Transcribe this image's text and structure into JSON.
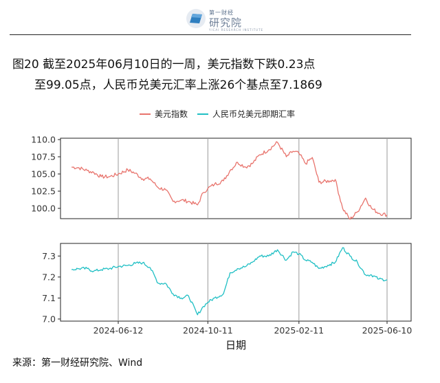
{
  "logo": {
    "brand_top": "第一财经",
    "brand_main": "研究院",
    "brand_sub": "YICAI RESEARCH INSTITUTE"
  },
  "title": {
    "line1": "图20  截至2025年06月10日的一周，美元指数下跌0.23点",
    "line2": "至99.05点，人民币兑美元汇率上涨26个基点至7.1869"
  },
  "source": "来源：第一财经研究院、Wind",
  "colors": {
    "usd": "#E8736C",
    "cny": "#1FBFC4",
    "axis": "#222222",
    "grid": "#9a9a9a"
  },
  "chart_data": {
    "type": "line",
    "legend_position": "top",
    "xlabel": "日期",
    "x_ticks": [
      "2024-06-12",
      "2024-10-11",
      "2025-02-11",
      "2025-06-10"
    ],
    "grid": "vertical lines at x ticks",
    "panels": [
      {
        "series_name": "美元指数",
        "ylim": [
          98.5,
          110.2
        ],
        "y_ticks": [
          "100.0",
          "102.5",
          "105.0",
          "107.5",
          "110.0"
        ],
        "points": [
          [
            "2024-04-10",
            106.0
          ],
          [
            "2024-04-20",
            105.9
          ],
          [
            "2024-05-01",
            105.5
          ],
          [
            "2024-05-10",
            105.2
          ],
          [
            "2024-05-20",
            104.6
          ],
          [
            "2024-05-31",
            104.6
          ],
          [
            "2024-06-12",
            105.0
          ],
          [
            "2024-06-25",
            105.6
          ],
          [
            "2024-07-05",
            105.1
          ],
          [
            "2024-07-15",
            104.3
          ],
          [
            "2024-07-25",
            104.3
          ],
          [
            "2024-08-05",
            103.0
          ],
          [
            "2024-08-15",
            102.7
          ],
          [
            "2024-08-25",
            101.0
          ],
          [
            "2024-09-05",
            101.2
          ],
          [
            "2024-09-15",
            101.0
          ],
          [
            "2024-09-27",
            100.5
          ],
          [
            "2024-10-05",
            102.3
          ],
          [
            "2024-10-11",
            102.9
          ],
          [
            "2024-10-20",
            103.5
          ],
          [
            "2024-11-01",
            104.0
          ],
          [
            "2024-11-10",
            105.5
          ],
          [
            "2024-11-20",
            106.7
          ],
          [
            "2024-12-01",
            106.0
          ],
          [
            "2024-12-10",
            106.5
          ],
          [
            "2024-12-20",
            107.8
          ],
          [
            "2025-01-01",
            108.5
          ],
          [
            "2025-01-13",
            109.6
          ],
          [
            "2025-01-25",
            107.5
          ],
          [
            "2025-02-03",
            108.3
          ],
          [
            "2025-02-11",
            108.0
          ],
          [
            "2025-02-20",
            106.5
          ],
          [
            "2025-03-01",
            107.4
          ],
          [
            "2025-03-10",
            103.8
          ],
          [
            "2025-03-25",
            104.0
          ],
          [
            "2025-04-01",
            104.2
          ],
          [
            "2025-04-11",
            100.0
          ],
          [
            "2025-04-21",
            98.4
          ],
          [
            "2025-05-01",
            99.5
          ],
          [
            "2025-05-12",
            101.5
          ],
          [
            "2025-05-20",
            100.0
          ],
          [
            "2025-05-30",
            99.3
          ],
          [
            "2025-06-10",
            99.05
          ]
        ]
      },
      {
        "series_name": "人民币兑美元即期汇率",
        "ylim": [
          6.99,
          7.36
        ],
        "y_ticks": [
          "7.0",
          "7.1",
          "7.2",
          "7.3"
        ],
        "points": [
          [
            "2024-04-10",
            7.235
          ],
          [
            "2024-04-20",
            7.24
          ],
          [
            "2024-05-01",
            7.24
          ],
          [
            "2024-05-10",
            7.228
          ],
          [
            "2024-05-20",
            7.235
          ],
          [
            "2024-05-31",
            7.24
          ],
          [
            "2024-06-12",
            7.25
          ],
          [
            "2024-06-25",
            7.255
          ],
          [
            "2024-07-05",
            7.265
          ],
          [
            "2024-07-15",
            7.268
          ],
          [
            "2024-07-25",
            7.245
          ],
          [
            "2024-08-05",
            7.17
          ],
          [
            "2024-08-15",
            7.17
          ],
          [
            "2024-08-25",
            7.12
          ],
          [
            "2024-09-05",
            7.1
          ],
          [
            "2024-09-15",
            7.11
          ],
          [
            "2024-09-27",
            7.02
          ],
          [
            "2024-10-05",
            7.06
          ],
          [
            "2024-10-11",
            7.08
          ],
          [
            "2024-10-20",
            7.1
          ],
          [
            "2024-11-01",
            7.12
          ],
          [
            "2024-11-10",
            7.22
          ],
          [
            "2024-11-20",
            7.24
          ],
          [
            "2024-12-01",
            7.25
          ],
          [
            "2024-12-10",
            7.27
          ],
          [
            "2024-12-20",
            7.3
          ],
          [
            "2025-01-01",
            7.3
          ],
          [
            "2025-01-13",
            7.33
          ],
          [
            "2025-01-25",
            7.28
          ],
          [
            "2025-02-03",
            7.32
          ],
          [
            "2025-02-11",
            7.31
          ],
          [
            "2025-02-20",
            7.28
          ],
          [
            "2025-03-01",
            7.27
          ],
          [
            "2025-03-10",
            7.24
          ],
          [
            "2025-03-25",
            7.26
          ],
          [
            "2025-04-01",
            7.27
          ],
          [
            "2025-04-11",
            7.34
          ],
          [
            "2025-04-21",
            7.3
          ],
          [
            "2025-05-01",
            7.27
          ],
          [
            "2025-05-12",
            7.21
          ],
          [
            "2025-05-20",
            7.21
          ],
          [
            "2025-05-30",
            7.19
          ],
          [
            "2025-06-10",
            7.1869
          ]
        ]
      }
    ]
  }
}
